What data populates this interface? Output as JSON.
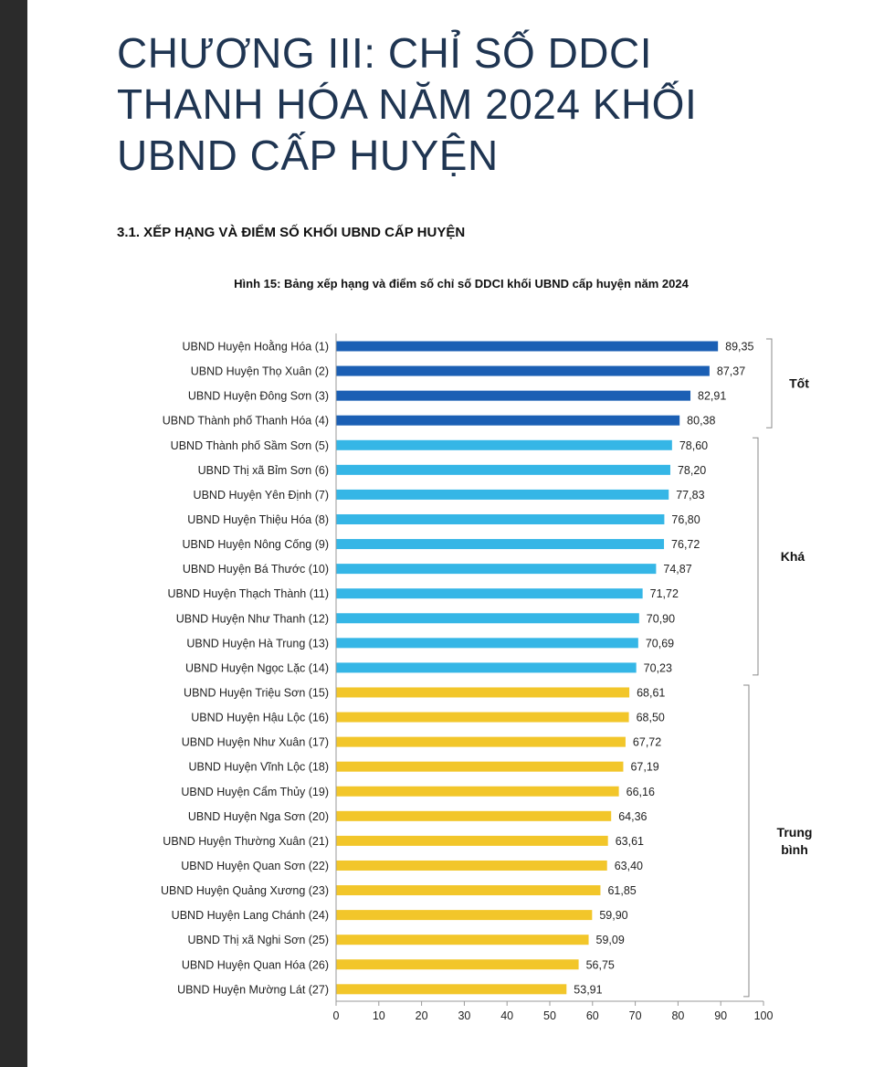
{
  "page": {
    "chapter_title_lines": [
      "CHƯƠNG III: CHỈ SỐ DDCI",
      "THANH HÓA NĂM 2024 KHỐI",
      "UBND CẤP HUYỆN"
    ],
    "section_heading": "3.1. XẾP HẠNG VÀ ĐIỂM SỐ KHỐI UBND CẤP HUYỆN",
    "figure_caption": "Hình 15: Bảng xếp hạng và điểm số chỉ số DDCI khối UBND cấp huyện năm 2024"
  },
  "chart_data": {
    "type": "bar",
    "orientation": "horizontal",
    "categories": [
      "UBND Huyện Hoằng Hóa (1)",
      "UBND Huyện Thọ Xuân (2)",
      "UBND Huyện Đông Sơn (3)",
      "UBND Thành phố Thanh Hóa (4)",
      "UBND Thành phố Sầm Sơn (5)",
      "UBND Thị xã Bỉm Sơn (6)",
      "UBND Huyện Yên Định (7)",
      "UBND Huyện Thiệu Hóa (8)",
      "UBND Huyện Nông Cống (9)",
      "UBND Huyện Bá Thước (10)",
      "UBND Huyện Thạch Thành (11)",
      "UBND Huyện Như Thanh (12)",
      "UBND Huyện Hà Trung (13)",
      "UBND Huyện Ngọc Lặc (14)",
      "UBND Huyện Triệu Sơn (15)",
      "UBND Huyện Hậu Lộc (16)",
      "UBND Huyện Như Xuân (17)",
      "UBND Huyện Vĩnh Lộc (18)",
      "UBND Huyện Cẩm Thủy (19)",
      "UBND Huyện Nga Sơn (20)",
      "UBND Huyện Thường Xuân (21)",
      "UBND Huyện Quan Sơn (22)",
      "UBND Huyện Quảng Xương (23)",
      "UBND Huyện Lang Chánh (24)",
      "UBND Thị xã Nghi Sơn (25)",
      "UBND Huyện Quan Hóa (26)",
      "UBND Huyện Mường Lát (27)"
    ],
    "values": [
      89.35,
      87.37,
      82.91,
      80.38,
      78.6,
      78.2,
      77.83,
      76.8,
      76.72,
      74.87,
      71.72,
      70.9,
      70.69,
      70.23,
      68.61,
      68.5,
      67.72,
      67.19,
      66.16,
      64.36,
      63.61,
      63.4,
      61.85,
      59.9,
      59.09,
      56.75,
      53.91
    ],
    "value_labels": [
      "89,35",
      "87,37",
      "82,91",
      "80,38",
      "78,60",
      "78,20",
      "77,83",
      "76,80",
      "76,72",
      "74,87",
      "71,72",
      "70,90",
      "70,69",
      "70,23",
      "68,61",
      "68,50",
      "67,72",
      "67,19",
      "66,16",
      "64,36",
      "63,61",
      "63,40",
      "61,85",
      "59,90",
      "59,09",
      "56,75",
      "53,91"
    ],
    "groups": [
      {
        "label_lines": [
          "Tốt"
        ],
        "start": 0,
        "end": 3,
        "color": "#1b5fb4"
      },
      {
        "label_lines": [
          "Khá"
        ],
        "start": 4,
        "end": 13,
        "color": "#35b6e6"
      },
      {
        "label_lines": [
          "Trung",
          "bình"
        ],
        "start": 14,
        "end": 26,
        "color": "#f2c62a"
      }
    ],
    "xlim": [
      0,
      100
    ],
    "xticks": [
      0,
      10,
      20,
      30,
      40,
      50,
      60,
      70,
      80,
      90,
      100
    ],
    "grid": false,
    "legend": "none",
    "xlabel": "",
    "ylabel": ""
  }
}
